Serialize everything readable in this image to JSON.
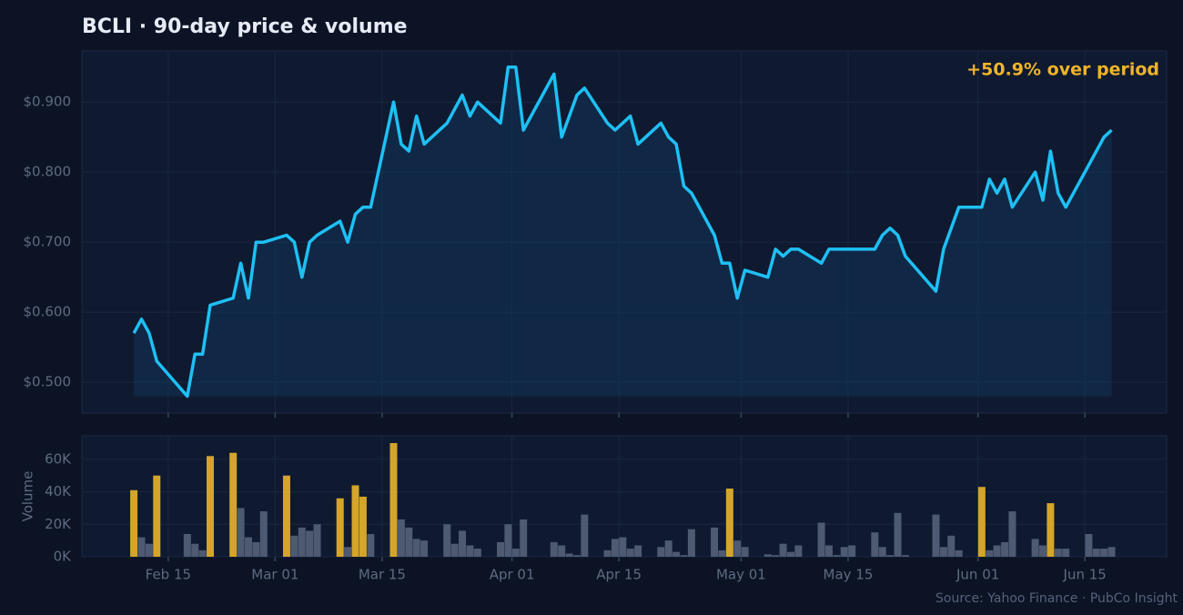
{
  "title": "BCLI  ·  90-day price & volume",
  "source": "Source: Yahoo Finance · PubCo Insight",
  "chart_data": [
    {
      "type": "line",
      "annotation": "+50.9% over period",
      "annotation_color": "#f0b429",
      "color": "#1ec0f5",
      "fill": "#12355a",
      "grid": true,
      "x": [
        41,
        42,
        43,
        44,
        48,
        49,
        50,
        51,
        54,
        55,
        56,
        57,
        58,
        61,
        62,
        63,
        64,
        65,
        68,
        69,
        70,
        71,
        72,
        75,
        76,
        77,
        78,
        79,
        82,
        84,
        85,
        86,
        89,
        90,
        91,
        92,
        96,
        97,
        99,
        100,
        103,
        104,
        106,
        107,
        110,
        111,
        112,
        113,
        114,
        117,
        118,
        119,
        120,
        121,
        124,
        125,
        126,
        127,
        128,
        131,
        132,
        138,
        139,
        140,
        141,
        142,
        146,
        147,
        149,
        152,
        153,
        154,
        155,
        156,
        159,
        160,
        161,
        162,
        163,
        168,
        169
      ],
      "values": [
        0.57,
        0.59,
        0.57,
        0.53,
        0.48,
        0.54,
        0.54,
        0.61,
        0.62,
        0.67,
        0.62,
        0.7,
        0.7,
        0.71,
        0.7,
        0.65,
        0.7,
        0.71,
        0.73,
        0.7,
        0.74,
        0.75,
        0.75,
        0.9,
        0.84,
        0.83,
        0.88,
        0.84,
        0.87,
        0.91,
        0.88,
        0.9,
        0.87,
        0.95,
        0.95,
        0.86,
        0.94,
        0.85,
        0.91,
        0.92,
        0.87,
        0.86,
        0.88,
        0.84,
        0.87,
        0.85,
        0.84,
        0.78,
        0.77,
        0.71,
        0.67,
        0.67,
        0.62,
        0.66,
        0.65,
        0.69,
        0.68,
        0.69,
        0.69,
        0.67,
        0.69,
        0.69,
        0.71,
        0.72,
        0.71,
        0.68,
        0.63,
        0.69,
        0.75,
        0.75,
        0.79,
        0.77,
        0.79,
        0.75,
        0.8,
        0.76,
        0.83,
        0.77,
        0.75,
        0.85,
        0.86
      ],
      "ylim": [
        0.456,
        0.973
      ],
      "yticks": [
        {
          "value": 0.5,
          "label": "$0.500"
        },
        {
          "value": 0.6,
          "label": "$0.600"
        },
        {
          "value": 0.7,
          "label": "$0.700"
        },
        {
          "value": 0.8,
          "label": "$0.800"
        },
        {
          "value": 0.9,
          "label": "$0.900"
        }
      ]
    },
    {
      "type": "bar",
      "ylabel": "Volume",
      "grid": true,
      "x": [
        41,
        42,
        43,
        44,
        48,
        49,
        50,
        51,
        54,
        55,
        56,
        57,
        58,
        61,
        62,
        63,
        64,
        65,
        68,
        69,
        70,
        71,
        72,
        75,
        76,
        77,
        78,
        79,
        82,
        83,
        84,
        85,
        86,
        89,
        90,
        91,
        92,
        96,
        97,
        98,
        99,
        100,
        103,
        104,
        105,
        106,
        107,
        110,
        111,
        112,
        113,
        114,
        117,
        118,
        119,
        120,
        121,
        124,
        125,
        126,
        127,
        128,
        131,
        132,
        133,
        134,
        135,
        138,
        139,
        140,
        141,
        142,
        146,
        147,
        148,
        149,
        152,
        153,
        154,
        155,
        156,
        159,
        160,
        161,
        162,
        163,
        166,
        167,
        168,
        169
      ],
      "values": [
        41000,
        12000,
        8000,
        50000,
        14000,
        8000,
        4000,
        62000,
        64000,
        30000,
        12000,
        9000,
        28000,
        50000,
        13000,
        18000,
        16000,
        20000,
        36000,
        6000,
        44000,
        37000,
        14000,
        70000,
        23000,
        18000,
        11000,
        10000,
        20000,
        8000,
        16000,
        7000,
        5000,
        9000,
        20000,
        5000,
        23000,
        9000,
        7000,
        2000,
        1000,
        26000,
        4000,
        11000,
        12000,
        5000,
        7000,
        6000,
        10000,
        3000,
        1000,
        17000,
        18000,
        4000,
        42000,
        10000,
        6000,
        1500,
        1000,
        8000,
        3000,
        7000,
        21000,
        7000,
        1000,
        6000,
        7000,
        15000,
        6000,
        1000,
        27000,
        1000,
        26000,
        6000,
        13000,
        4000,
        43000,
        4000,
        7000,
        9000,
        28000,
        11000,
        7000,
        33000,
        5000,
        5000,
        14000,
        5000,
        5000,
        6000
      ],
      "colors": [
        "#d4a52a",
        "#4d5a72",
        "#4d5a72",
        "#d4a52a",
        "#4d5a72",
        "#4d5a72",
        "#4d5a72",
        "#d4a52a",
        "#d4a52a",
        "#4d5a72",
        "#4d5a72",
        "#4d5a72",
        "#4d5a72",
        "#d4a52a",
        "#4d5a72",
        "#4d5a72",
        "#4d5a72",
        "#4d5a72",
        "#d4a52a",
        "#4d5a72",
        "#d4a52a",
        "#d4a52a",
        "#4d5a72",
        "#d4a52a",
        "#4d5a72",
        "#4d5a72",
        "#4d5a72",
        "#4d5a72",
        "#4d5a72",
        "#4d5a72",
        "#4d5a72",
        "#4d5a72",
        "#4d5a72",
        "#4d5a72",
        "#4d5a72",
        "#4d5a72",
        "#4d5a72",
        "#4d5a72",
        "#4d5a72",
        "#4d5a72",
        "#4d5a72",
        "#4d5a72",
        "#4d5a72",
        "#4d5a72",
        "#4d5a72",
        "#4d5a72",
        "#4d5a72",
        "#4d5a72",
        "#4d5a72",
        "#4d5a72",
        "#4d5a72",
        "#4d5a72",
        "#4d5a72",
        "#4d5a72",
        "#d4a52a",
        "#4d5a72",
        "#4d5a72",
        "#4d5a72",
        "#4d5a72",
        "#4d5a72",
        "#4d5a72",
        "#4d5a72",
        "#4d5a72",
        "#4d5a72",
        "#4d5a72",
        "#4d5a72",
        "#4d5a72",
        "#4d5a72",
        "#4d5a72",
        "#4d5a72",
        "#4d5a72",
        "#4d5a72",
        "#4d5a72",
        "#4d5a72",
        "#4d5a72",
        "#4d5a72",
        "#d4a52a",
        "#4d5a72",
        "#4d5a72",
        "#4d5a72",
        "#4d5a72",
        "#4d5a72",
        "#4d5a72",
        "#d4a52a",
        "#4d5a72",
        "#4d5a72",
        "#4d5a72",
        "#4d5a72",
        "#4d5a72",
        "#4d5a72"
      ],
      "ylim": [
        0,
        74500
      ],
      "yticks": [
        {
          "value": 0,
          "label": "0K"
        },
        {
          "value": 20000,
          "label": "20K"
        },
        {
          "value": 40000,
          "label": "40K"
        },
        {
          "value": 60000,
          "label": "60K"
        }
      ],
      "xlim": [
        34.7,
        176.7
      ],
      "xticks": [
        {
          "value": 46,
          "label": "Feb 15"
        },
        {
          "value": 60,
          "label": "Mar 01"
        },
        {
          "value": 74,
          "label": "Mar 15"
        },
        {
          "value": 91,
          "label": "Apr 01"
        },
        {
          "value": 105,
          "label": "Apr 15"
        },
        {
          "value": 121,
          "label": "May 01"
        },
        {
          "value": 135,
          "label": "May 15"
        },
        {
          "value": 152,
          "label": "Jun 01"
        },
        {
          "value": 166,
          "label": "Jun 15"
        }
      ]
    }
  ]
}
